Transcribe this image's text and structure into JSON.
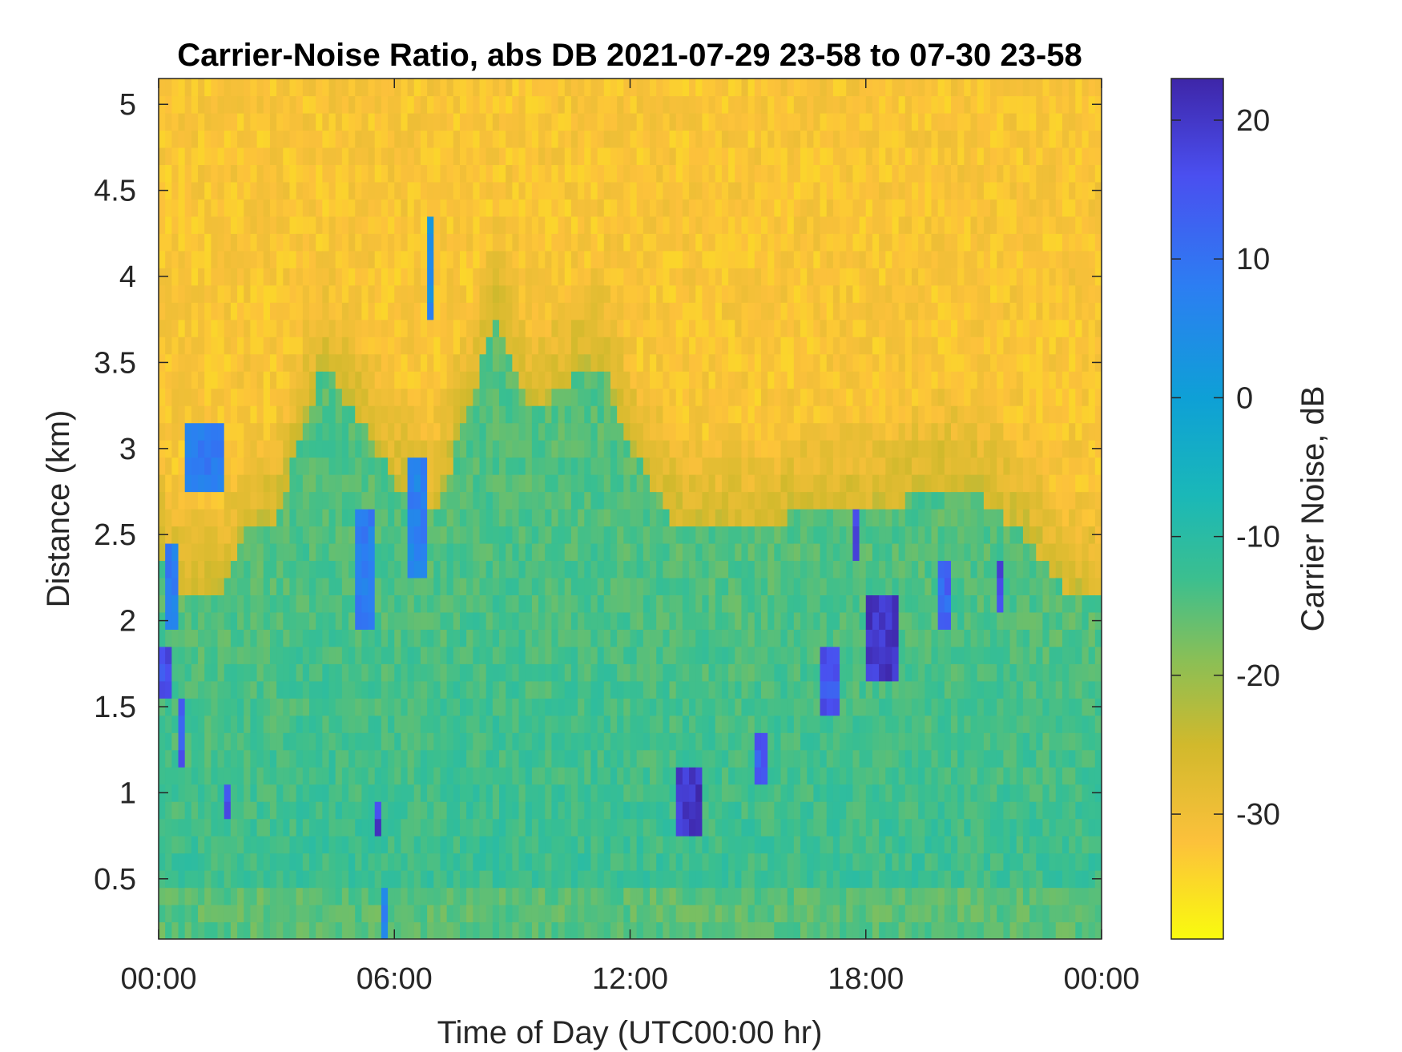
{
  "chart_data": {
    "type": "heatmap",
    "title": "Carrier-Noise Ratio, abs DB 2021-07-29 23-58 to 07-30 23-58",
    "xlabel": "Time of Day (UTC00:00 hr)",
    "ylabel": "Distance (km)",
    "x_range_hours": [
      0,
      24
    ],
    "x_ticks": [
      {
        "value": 0,
        "label": "00:00"
      },
      {
        "value": 6,
        "label": "06:00"
      },
      {
        "value": 12,
        "label": "12:00"
      },
      {
        "value": 18,
        "label": "18:00"
      },
      {
        "value": 24,
        "label": "00:00"
      }
    ],
    "y_range_km": [
      0.15,
      5.15
    ],
    "y_ticks": [
      {
        "value": 0.5,
        "label": "0.5"
      },
      {
        "value": 1,
        "label": "1"
      },
      {
        "value": 1.5,
        "label": "1.5"
      },
      {
        "value": 2,
        "label": "2"
      },
      {
        "value": 2.5,
        "label": "2.5"
      },
      {
        "value": 3,
        "label": "3"
      },
      {
        "value": 3.5,
        "label": "3.5"
      },
      {
        "value": 4,
        "label": "4"
      },
      {
        "value": 4.5,
        "label": "4.5"
      },
      {
        "value": 5,
        "label": "5"
      }
    ],
    "colorbar": {
      "label": "Carrier Noise, dB",
      "range_db": [
        -39,
        23
      ],
      "ticks": [
        {
          "value": 20,
          "label": "20"
        },
        {
          "value": 10,
          "label": "10"
        },
        {
          "value": 0,
          "label": "0"
        },
        {
          "value": -10,
          "label": "-10"
        },
        {
          "value": -20,
          "label": "-20"
        },
        {
          "value": -30,
          "label": "-30"
        }
      ],
      "colormap": "parula",
      "stops": [
        {
          "db": -39,
          "color": "#f9fb0e"
        },
        {
          "db": -32,
          "color": "#fcc13b"
        },
        {
          "db": -25,
          "color": "#d1b92c"
        },
        {
          "db": -19,
          "color": "#8bbf55"
        },
        {
          "db": -13,
          "color": "#3bbf8f"
        },
        {
          "db": -7,
          "color": "#1ab8b8"
        },
        {
          "db": 0,
          "color": "#0ea0d6"
        },
        {
          "db": 8,
          "color": "#2c7ef2"
        },
        {
          "db": 16,
          "color": "#4a4ff0"
        },
        {
          "db": 23,
          "color": "#3e26a8"
        }
      ]
    },
    "field_description_db": {
      "background_far_range": -32,
      "boundary_layer_near_surface": -12,
      "cloud_returns": 14
    },
    "boundary_top_km": [
      [
        0,
        2.4
      ],
      [
        0.5,
        2.2
      ],
      [
        1.5,
        2.1
      ],
      [
        2.2,
        2.5
      ],
      [
        3,
        2.6
      ],
      [
        3.5,
        3.0
      ],
      [
        4.2,
        3.5
      ],
      [
        5,
        3.2
      ],
      [
        6,
        2.8
      ],
      [
        7,
        2.6
      ],
      [
        8,
        3.3
      ],
      [
        8.6,
        3.8
      ],
      [
        9.5,
        3.2
      ],
      [
        10.5,
        3.4
      ],
      [
        11.3,
        3.5
      ],
      [
        12,
        3.0
      ],
      [
        13,
        2.6
      ],
      [
        14,
        2.5
      ],
      [
        15,
        2.5
      ],
      [
        16,
        2.6
      ],
      [
        17,
        2.6
      ],
      [
        18,
        2.6
      ],
      [
        19,
        2.7
      ],
      [
        20,
        2.8
      ],
      [
        21,
        2.7
      ],
      [
        22,
        2.5
      ],
      [
        23,
        2.2
      ],
      [
        24,
        2.1
      ]
    ],
    "clouds": [
      {
        "t0": 0.6,
        "t1": 1.7,
        "z0": 2.75,
        "z1": 3.12,
        "db": 9
      },
      {
        "t0": 0.0,
        "t1": 0.4,
        "z0": 1.6,
        "z1": 1.85,
        "db": 16
      },
      {
        "t0": 0.2,
        "t1": 0.5,
        "z0": 2.0,
        "z1": 2.4,
        "db": 8
      },
      {
        "t0": 0.45,
        "t1": 0.65,
        "z0": 1.2,
        "z1": 1.5,
        "db": 14
      },
      {
        "t0": 1.75,
        "t1": 1.85,
        "z0": 0.85,
        "z1": 1.05,
        "db": 16
      },
      {
        "t0": 5.0,
        "t1": 5.5,
        "z0": 2.0,
        "z1": 2.6,
        "db": 8
      },
      {
        "t0": 5.55,
        "t1": 5.7,
        "z0": 0.75,
        "z1": 0.95,
        "db": 18
      },
      {
        "t0": 5.6,
        "t1": 5.8,
        "z0": 0.15,
        "z1": 0.45,
        "db": 6
      },
      {
        "t0": 6.3,
        "t1": 6.9,
        "z0": 2.3,
        "z1": 2.9,
        "db": 7
      },
      {
        "t0": 6.85,
        "t1": 6.95,
        "z0": 3.75,
        "z1": 4.35,
        "db": 5
      },
      {
        "t0": 13.25,
        "t1": 13.75,
        "z0": 0.75,
        "z1": 1.15,
        "db": 20
      },
      {
        "t0": 15.1,
        "t1": 15.5,
        "z0": 1.1,
        "z1": 1.35,
        "db": 14
      },
      {
        "t0": 16.8,
        "t1": 17.3,
        "z0": 1.5,
        "z1": 1.85,
        "db": 15
      },
      {
        "t0": 17.75,
        "t1": 17.85,
        "z0": 2.35,
        "z1": 2.65,
        "db": 18
      },
      {
        "t0": 18.0,
        "t1": 18.8,
        "z0": 1.7,
        "z1": 2.1,
        "db": 20
      },
      {
        "t0": 19.8,
        "t1": 20.2,
        "z0": 1.95,
        "z1": 2.3,
        "db": 12
      },
      {
        "t0": 21.35,
        "t1": 21.45,
        "z0": 2.05,
        "z1": 2.35,
        "db": 18
      }
    ]
  }
}
